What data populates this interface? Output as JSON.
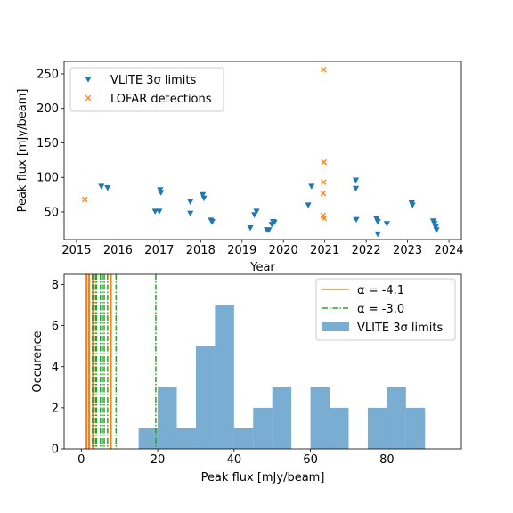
{
  "chart_data": [
    {
      "type": "scatter",
      "xlabel": "Year",
      "ylabel": "Peak flux [mJy/beam]",
      "xlim": [
        2014.7,
        2024.3
      ],
      "ylim": [
        10,
        268
      ],
      "x_ticks": [
        2015,
        2016,
        2017,
        2018,
        2019,
        2020,
        2021,
        2022,
        2023,
        2024
      ],
      "y_ticks": [
        50,
        100,
        150,
        200,
        250
      ],
      "legend_position": "top-left",
      "series": [
        {
          "name": "VLITE 3σ limits",
          "marker": "triangle-down",
          "color": "#1f77b4",
          "points": [
            {
              "x": 2015.6,
              "y": 87
            },
            {
              "x": 2015.75,
              "y": 85
            },
            {
              "x": 2016.9,
              "y": 51
            },
            {
              "x": 2017.0,
              "y": 51
            },
            {
              "x": 2017.02,
              "y": 82
            },
            {
              "x": 2017.04,
              "y": 78
            },
            {
              "x": 2017.75,
              "y": 65
            },
            {
              "x": 2017.75,
              "y": 48
            },
            {
              "x": 2018.05,
              "y": 75
            },
            {
              "x": 2018.08,
              "y": 70
            },
            {
              "x": 2018.25,
              "y": 38
            },
            {
              "x": 2018.28,
              "y": 36
            },
            {
              "x": 2019.2,
              "y": 27
            },
            {
              "x": 2019.3,
              "y": 46
            },
            {
              "x": 2019.35,
              "y": 51
            },
            {
              "x": 2019.6,
              "y": 24
            },
            {
              "x": 2019.65,
              "y": 24
            },
            {
              "x": 2019.72,
              "y": 32
            },
            {
              "x": 2019.75,
              "y": 36
            },
            {
              "x": 2019.78,
              "y": 35
            },
            {
              "x": 2020.6,
              "y": 60
            },
            {
              "x": 2020.68,
              "y": 87
            },
            {
              "x": 2021.75,
              "y": 96
            },
            {
              "x": 2021.75,
              "y": 84
            },
            {
              "x": 2021.76,
              "y": 39
            },
            {
              "x": 2022.25,
              "y": 40
            },
            {
              "x": 2022.28,
              "y": 36
            },
            {
              "x": 2022.28,
              "y": 18
            },
            {
              "x": 2022.5,
              "y": 33
            },
            {
              "x": 2023.1,
              "y": 63
            },
            {
              "x": 2023.12,
              "y": 60
            },
            {
              "x": 2023.62,
              "y": 37
            },
            {
              "x": 2023.65,
              "y": 33
            },
            {
              "x": 2023.68,
              "y": 28
            },
            {
              "x": 2023.7,
              "y": 24
            }
          ]
        },
        {
          "name": "LOFAR detections",
          "marker": "x",
          "color": "#ff7f0e",
          "points": [
            {
              "x": 2015.2,
              "y": 68
            },
            {
              "x": 2020.97,
              "y": 256
            },
            {
              "x": 2020.98,
              "y": 122
            },
            {
              "x": 2020.97,
              "y": 93
            },
            {
              "x": 2020.96,
              "y": 77
            },
            {
              "x": 2020.96,
              "y": 45
            },
            {
              "x": 2020.98,
              "y": 41
            }
          ]
        }
      ]
    },
    {
      "type": "bar",
      "subtype": "histogram",
      "xlabel": "Peak flux [mJy/beam]",
      "ylabel": "Occurence",
      "xlim": [
        -4.5,
        99.5
      ],
      "ylim": [
        0,
        8.5
      ],
      "x_ticks": [
        0,
        20,
        40,
        60,
        80
      ],
      "y_ticks": [
        0,
        2,
        4,
        6,
        8
      ],
      "legend_position": "top-right",
      "histogram": {
        "name": "VLITE 3σ limits",
        "color": "#1f77b4",
        "bin_edges": [
          15,
          20,
          25,
          30,
          35,
          40,
          45,
          50,
          55,
          60,
          65,
          70,
          75,
          80,
          85,
          90
        ],
        "counts": [
          1,
          3,
          1,
          5,
          7,
          1,
          2,
          3,
          0,
          3,
          2,
          0,
          2,
          3,
          2
        ]
      },
      "vlines": [
        {
          "name": "α = -4.1",
          "style": "solid",
          "color": "#ff7f0e",
          "x": [
            1.3,
            1.4,
            1.9,
            2.1,
            3.0,
            3.3,
            7.8
          ]
        },
        {
          "name": "α = -3.0",
          "style": "dashdot",
          "color": "#2ca02c",
          "x": [
            2.9,
            3.3,
            3.8,
            4.0,
            5.0,
            5.5,
            6.0,
            6.9,
            9.1,
            19.5
          ]
        }
      ]
    }
  ]
}
